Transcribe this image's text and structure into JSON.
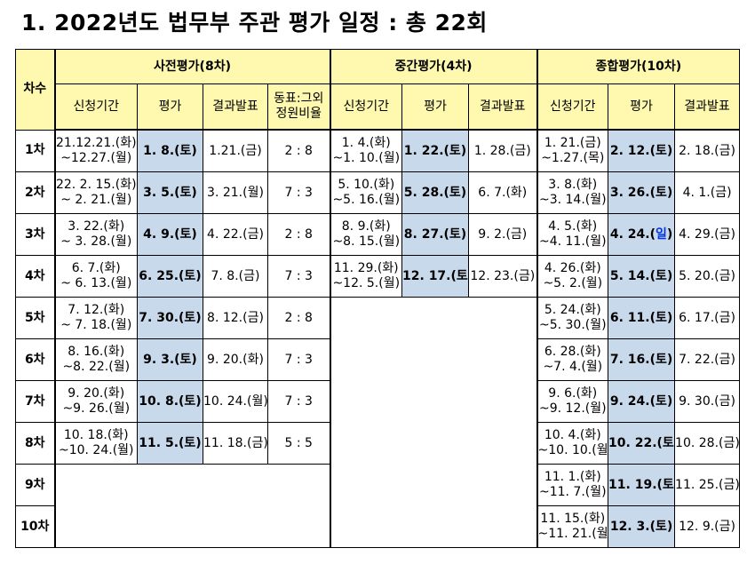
{
  "title": "1. 2022년도 법무부 주관 평가 일정 : 총 22회",
  "header": {
    "round": "차수",
    "group1": "사전평가(8차)",
    "group2": "중간평가(4차)",
    "group3": "종합평가(10차)",
    "apply": "신청기간",
    "exam": "평가",
    "result": "결과발표",
    "ratio_line1": "동표:그외",
    "ratio_line2": "정원비율"
  },
  "rows": [
    {
      "round": "1차",
      "pre": {
        "apply1": "21.12.21.(화)",
        "apply2": "~12.27.(월)",
        "exam": "1. 8.(토)",
        "result": "1.21.(금)",
        "ratio": "2 : 8"
      },
      "mid": {
        "apply1": "1. 4.(화)",
        "apply2": "~1. 10.(월)",
        "exam": "1. 22.(토)",
        "result": "1. 28.(금)"
      },
      "fin": {
        "apply1": "1. 21.(금)",
        "apply2": "~1.27.(목)",
        "exam": "2. 12.(토)",
        "exam_sun": "",
        "exam_close": "",
        "result": "2. 18.(금)"
      }
    },
    {
      "round": "2차",
      "pre": {
        "apply1": "22. 2. 15.(화)",
        "apply2": "~ 2. 21.(월)",
        "exam": "3. 5.(토)",
        "result": "3. 21.(월)",
        "ratio": "7 : 3"
      },
      "mid": {
        "apply1": "5. 10.(화)",
        "apply2": "~5. 16.(월)",
        "exam": "5. 28.(토)",
        "result": "6. 7.(화)"
      },
      "fin": {
        "apply1": "3. 8.(화)",
        "apply2": "~3. 14.(월)",
        "exam": "3. 26.(토)",
        "exam_sun": "",
        "exam_close": "",
        "result": "4. 1.(금)"
      }
    },
    {
      "round": "3차",
      "pre": {
        "apply1": "3. 22.(화)",
        "apply2": "~ 3. 28.(월)",
        "exam": "4. 9.(토)",
        "result": "4. 22.(금)",
        "ratio": "2 : 8"
      },
      "mid": {
        "apply1": "8. 9.(화)",
        "apply2": "~8. 15.(월)",
        "exam": "8. 27.(토)",
        "result": "9. 2.(금)"
      },
      "fin": {
        "apply1": "4. 5.(화)",
        "apply2": "~4. 11.(월)",
        "exam": "4. 24.(",
        "exam_sun": "일",
        "exam_close": ")",
        "result": "4. 29.(금)"
      }
    },
    {
      "round": "4차",
      "pre": {
        "apply1": "6. 7.(화)",
        "apply2": "~ 6. 13.(월)",
        "exam": "6. 25.(토)",
        "result": "7. 8.(금)",
        "ratio": "7 : 3"
      },
      "mid": {
        "apply1": "11. 29.(화)",
        "apply2": "~12. 5.(월)",
        "exam": "12. 17.(토)",
        "result": "12. 23.(금)"
      },
      "fin": {
        "apply1": "4. 26.(화)",
        "apply2": "~5. 2.(월)",
        "exam": "5. 14.(토)",
        "exam_sun": "",
        "exam_close": "",
        "result": "5. 20.(금)"
      }
    },
    {
      "round": "5차",
      "pre": {
        "apply1": "7. 12.(화)",
        "apply2": "~ 7. 18.(월)",
        "exam": "7. 30.(토)",
        "result": "8. 12.(금)",
        "ratio": "2 : 8"
      },
      "fin": {
        "apply1": "5. 24.(화)",
        "apply2": "~5. 30.(월)",
        "exam": "6. 11.(토)",
        "exam_sun": "",
        "exam_close": "",
        "result": "6. 17.(금)"
      }
    },
    {
      "round": "6차",
      "pre": {
        "apply1": "8. 16.(화)",
        "apply2": "~8. 22.(월)",
        "exam": "9. 3.(토)",
        "result": "9. 20.(화)",
        "ratio": "7 : 3"
      },
      "fin": {
        "apply1": "6. 28.(화)",
        "apply2": "~7. 4.(월)",
        "exam": "7. 16.(토)",
        "exam_sun": "",
        "exam_close": "",
        "result": "7. 22.(금)"
      }
    },
    {
      "round": "7차",
      "pre": {
        "apply1": "9. 20.(화)",
        "apply2": "~9. 26.(월)",
        "exam": "10. 8.(토)",
        "result": "10. 24.(월)",
        "ratio": "7 : 3"
      },
      "fin": {
        "apply1": "9. 6.(화)",
        "apply2": "~9. 12.(월)",
        "exam": "9. 24.(토)",
        "exam_sun": "",
        "exam_close": "",
        "result": "9. 30.(금)"
      }
    },
    {
      "round": "8차",
      "pre": {
        "apply1": "10. 18.(화)",
        "apply2": "~10. 24.(월)",
        "exam": "11. 5.(토)",
        "result": "11. 18.(금)",
        "ratio": "5 : 5"
      },
      "fin": {
        "apply1": "10. 4.(화)",
        "apply2": "~10. 10.(월)",
        "exam": "10. 22.(토)",
        "exam_sun": "",
        "exam_close": "",
        "result": "10. 28.(금)"
      }
    },
    {
      "round": "9차",
      "fin": {
        "apply1": "11. 1.(화)",
        "apply2": "~11. 7.(월)",
        "exam": "11. 19.(토)",
        "exam_sun": "",
        "exam_close": "",
        "result": "11. 25.(금)"
      }
    },
    {
      "round": "10차",
      "fin": {
        "apply1": "11. 15.(화)",
        "apply2": "~11. 21.(월)",
        "exam": "12. 3.(토)",
        "exam_sun": "",
        "exam_close": "",
        "result": "12. 9.(금)"
      }
    }
  ]
}
